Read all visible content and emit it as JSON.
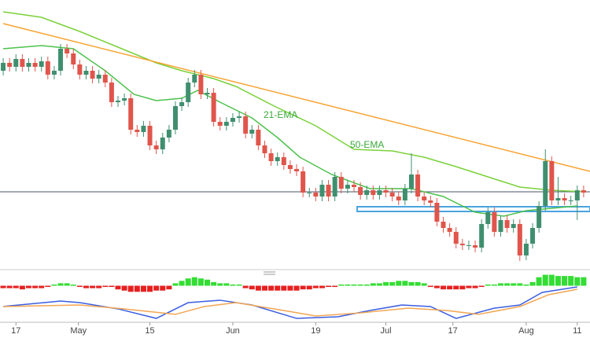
{
  "chart_data": [
    {
      "type": "candlestick",
      "xlim": [
        -0.5,
        92
      ],
      "ylim": [
        0,
        340
      ],
      "xticks": [
        {
          "value": 2,
          "label": "17"
        },
        {
          "value": 11.8,
          "label": "May"
        },
        {
          "value": 23,
          "label": "15"
        },
        {
          "value": 36,
          "label": "Jun"
        },
        {
          "value": 49,
          "label": "19"
        },
        {
          "value": 60,
          "label": "Jul"
        },
        {
          "value": 70.5,
          "label": "17"
        },
        {
          "value": 82,
          "label": "Aug"
        },
        {
          "value": 90,
          "label": "11"
        }
      ],
      "up_color": "#3f8f6f",
      "down_color": "#e0554b",
      "open": [
        250,
        260,
        255,
        265,
        255,
        260,
        255,
        262,
        245,
        250,
        278,
        272,
        258,
        245,
        250,
        240,
        245,
        235,
        210,
        212,
        215,
        175,
        172,
        180,
        155,
        150,
        165,
        175,
        205,
        210,
        235,
        245,
        220,
        222,
        185,
        180,
        185,
        190,
        192,
        170,
        175,
        155,
        145,
        135,
        140,
        130,
        125,
        122,
        95,
        95,
        90,
        105,
        90,
        115,
        100,
        105,
        102,
        92,
        98,
        92,
        98,
        95,
        90,
        85,
        100,
        118,
        90,
        85,
        82,
        58,
        50,
        45,
        30,
        28,
        28,
        25,
        55,
        70,
        45,
        60,
        50,
        55,
        15,
        30,
        50,
        78,
        135,
        85,
        88,
        85,
        85,
        98
      ],
      "high": [
        266,
        266,
        271,
        271,
        266,
        266,
        268,
        268,
        256,
        284,
        284,
        278,
        264,
        256,
        256,
        251,
        251,
        241,
        218,
        221,
        221,
        181,
        186,
        186,
        161,
        171,
        181,
        211,
        216,
        241,
        251,
        251,
        228,
        228,
        191,
        191,
        196,
        198,
        198,
        181,
        181,
        161,
        151,
        146,
        146,
        136,
        131,
        128,
        101,
        101,
        111,
        111,
        121,
        121,
        111,
        111,
        108,
        104,
        104,
        104,
        104,
        101,
        96,
        106,
        145,
        124,
        96,
        91,
        88,
        64,
        56,
        51,
        36,
        34,
        34,
        61,
        76,
        76,
        66,
        66,
        61,
        61,
        36,
        56,
        84,
        150,
        141,
        115,
        94,
        91,
        104,
        104
      ],
      "low": [
        244,
        249,
        249,
        249,
        249,
        249,
        249,
        239,
        239,
        244,
        266,
        252,
        239,
        239,
        234,
        234,
        229,
        204,
        204,
        206,
        169,
        166,
        166,
        149,
        144,
        144,
        159,
        169,
        199,
        204,
        229,
        214,
        214,
        179,
        174,
        174,
        179,
        184,
        164,
        164,
        149,
        139,
        129,
        129,
        124,
        119,
        116,
        89,
        89,
        84,
        84,
        84,
        84,
        94,
        94,
        96,
        86,
        86,
        86,
        86,
        89,
        84,
        79,
        79,
        94,
        84,
        79,
        76,
        52,
        44,
        39,
        24,
        22,
        22,
        19,
        19,
        49,
        39,
        39,
        44,
        44,
        8,
        9,
        24,
        44,
        72,
        79,
        79,
        79,
        79,
        60,
        89
      ],
      "close": [
        260,
        255,
        265,
        255,
        260,
        255,
        262,
        245,
        250,
        278,
        272,
        258,
        245,
        250,
        240,
        245,
        235,
        210,
        212,
        215,
        175,
        172,
        180,
        155,
        150,
        165,
        175,
        205,
        210,
        235,
        245,
        220,
        222,
        185,
        180,
        185,
        190,
        192,
        170,
        175,
        155,
        145,
        135,
        140,
        130,
        125,
        122,
        95,
        95,
        90,
        105,
        90,
        115,
        100,
        105,
        102,
        92,
        98,
        92,
        98,
        95,
        90,
        85,
        100,
        118,
        90,
        85,
        82,
        58,
        50,
        45,
        30,
        28,
        28,
        25,
        55,
        70,
        45,
        60,
        50,
        55,
        15,
        30,
        50,
        78,
        135,
        85,
        88,
        85,
        85,
        98,
        95
      ],
      "series": [
        {
          "name": "21-EMA",
          "color": "#4cc24c",
          "x": [
            0,
            6,
            11,
            16,
            20.5,
            24,
            28,
            30.5,
            34,
            39,
            43,
            46.5,
            51.5,
            57.5,
            64,
            69,
            74,
            78.5,
            82,
            86,
            90
          ],
          "values": [
            278,
            282,
            278,
            250,
            220,
            212,
            215,
            225,
            210,
            190,
            165,
            140,
            118,
            100,
            100,
            90,
            70,
            65,
            72,
            75,
            78
          ]
        },
        {
          "name": "50-EMA",
          "color": "#7ad13a",
          "x": [
            0,
            6,
            12,
            18,
            24,
            28,
            33,
            36.5,
            42.5,
            49,
            55,
            61,
            66,
            71,
            76,
            81,
            86,
            91
          ],
          "values": [
            325,
            318,
            300,
            280,
            260,
            250,
            240,
            230,
            205,
            180,
            150,
            148,
            140,
            128,
            115,
            102,
            98,
            96
          ]
        },
        {
          "color": "#f7a331",
          "x": [
            0,
            92
          ],
          "values": [
            310,
            122
          ]
        }
      ],
      "level": 96,
      "level_color": "#44546a",
      "zone": [
        71,
        77
      ],
      "zone_x": [
        55.5,
        92
      ],
      "zone_color": "#4aa3df"
    },
    {
      "type": "bar",
      "ylim": [
        -30,
        10
      ],
      "up_color": "#33dd33",
      "down_color": "#e62020",
      "values": [
        -2,
        -2,
        -2,
        -3,
        -2,
        -2,
        -2,
        -1,
        1,
        2,
        2,
        1,
        -1,
        -2,
        -2,
        -2,
        -1,
        -1,
        -3,
        -4,
        -5,
        -5,
        -5,
        -5,
        -4,
        -4,
        -3,
        2,
        4,
        6,
        7,
        6,
        5,
        3,
        2,
        2,
        1,
        1,
        -2,
        -3,
        -4,
        -4,
        -4,
        -4,
        -4,
        -4,
        -4,
        -3,
        -3,
        -2,
        -2,
        -1,
        -1,
        1,
        1,
        1,
        1,
        1,
        2,
        2,
        3,
        3,
        4,
        4,
        3,
        3,
        2,
        -1,
        -2,
        -3,
        -3,
        -3,
        -3,
        -2,
        -2,
        -1,
        1,
        1,
        2,
        2,
        2,
        2,
        1,
        3,
        7,
        9,
        9,
        8,
        8,
        8,
        7,
        7
      ],
      "series": [
        {
          "color": "#3a5ee0",
          "x": [
            0,
            9,
            12,
            18,
            24,
            29,
            34,
            39,
            46,
            52.5,
            57.5,
            62.5,
            67,
            71,
            77,
            81,
            84.5,
            90
          ],
          "values": [
            -17,
            -12.6,
            -13.9,
            -19,
            -26.8,
            -13.9,
            -11.9,
            -15.8,
            -26.8,
            -25.5,
            -20.3,
            -15.8,
            -17.1,
            -26.8,
            -18.4,
            -15.8,
            -5.5,
            -1
          ]
        },
        {
          "color": "#f2a552",
          "x": [
            0,
            12,
            19,
            27,
            31.5,
            36.5,
            42.5,
            49,
            56,
            63.5,
            69.5,
            74.5,
            81,
            85.5,
            90
          ],
          "values": [
            -17.1,
            -15.8,
            -19,
            -23.5,
            -17.1,
            -13.9,
            -19,
            -24.8,
            -22.3,
            -18.4,
            -20.3,
            -23.5,
            -17.1,
            -7.4,
            -2.9
          ]
        }
      ]
    }
  ]
}
